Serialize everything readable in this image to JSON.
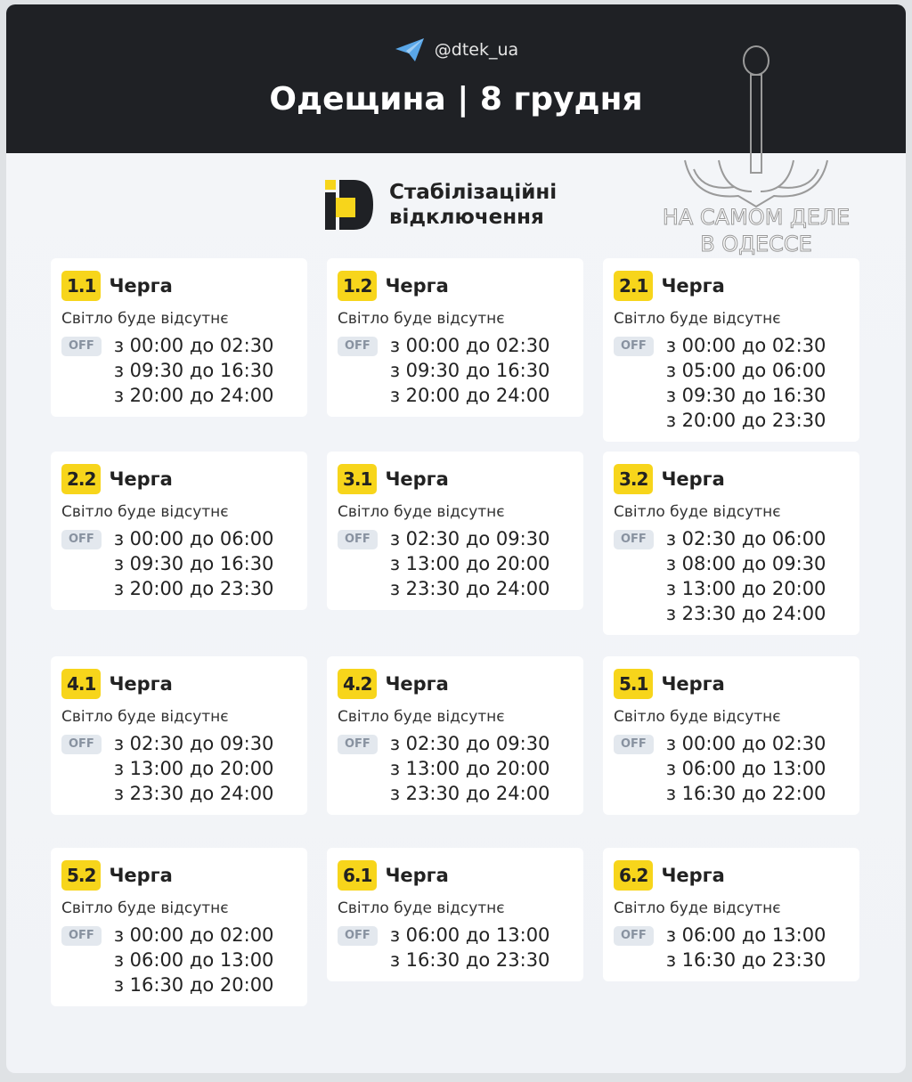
{
  "header": {
    "handle": "@dtek_ua",
    "title": "Одещина | 8 грудня",
    "icon": "telegram-icon"
  },
  "brand": {
    "line1": "Стабілізаційні",
    "line2": "відключення",
    "logo": "dtek-logo"
  },
  "watermark": {
    "line1": "НА САМОМ ДЕЛЕ",
    "line2": "В ОДЕССЕ"
  },
  "colors": {
    "header_bg": "#1f2125",
    "badge": "#f7d51b",
    "off_bg": "#e3e8ee"
  },
  "queues": [
    {
      "id": "1.1",
      "label": "Черга",
      "status": "Світло буде відсутнє",
      "off": "OFF",
      "times": [
        "з 00:00 до 02:30",
        "з 09:30 до 16:30",
        "з 20:00 до 24:00"
      ]
    },
    {
      "id": "1.2",
      "label": "Черга",
      "status": "Світло буде відсутнє",
      "off": "OFF",
      "times": [
        "з 00:00 до 02:30",
        "з 09:30 до 16:30",
        "з 20:00 до 24:00"
      ]
    },
    {
      "id": "2.1",
      "label": "Черга",
      "status": "Світло буде відсутнє",
      "off": "OFF",
      "times": [
        "з 00:00 до 02:30",
        "з 05:00 до 06:00",
        "з 09:30 до 16:30",
        "з 20:00 до 23:30"
      ]
    },
    {
      "id": "2.2",
      "label": "Черга",
      "status": "Світло буде відсутнє",
      "off": "OFF",
      "times": [
        "з 00:00 до 06:00",
        "з 09:30 до 16:30",
        "з 20:00 до 23:30"
      ]
    },
    {
      "id": "3.1",
      "label": "Черга",
      "status": "Світло буде відсутнє",
      "off": "OFF",
      "times": [
        "з 02:30 до 09:30",
        "з 13:00 до 20:00",
        "з 23:30 до 24:00"
      ]
    },
    {
      "id": "3.2",
      "label": "Черга",
      "status": "Світло буде відсутнє",
      "off": "OFF",
      "times": [
        "з 02:30 до 06:00",
        "з 08:00 до 09:30",
        "з 13:00 до 20:00",
        "з 23:30 до 24:00"
      ]
    },
    {
      "id": "4.1",
      "label": "Черга",
      "status": "Світло буде відсутнє",
      "off": "OFF",
      "times": [
        "з 02:30 до 09:30",
        "з 13:00 до 20:00",
        "з 23:30 до 24:00"
      ]
    },
    {
      "id": "4.2",
      "label": "Черга",
      "status": "Світло буде відсутнє",
      "off": "OFF",
      "times": [
        "з 02:30 до 09:30",
        "з 13:00 до 20:00",
        "з 23:30 до 24:00"
      ]
    },
    {
      "id": "5.1",
      "label": "Черга",
      "status": "Світло буде відсутнє",
      "off": "OFF",
      "times": [
        "з 00:00 до 02:30",
        "з 06:00 до 13:00",
        "з 16:30 до 22:00"
      ]
    },
    {
      "id": "5.2",
      "label": "Черга",
      "status": "Світло буде відсутнє",
      "off": "OFF",
      "times": [
        "з 00:00 до 02:00",
        "з 06:00 до 13:00",
        "з 16:30 до 20:00"
      ]
    },
    {
      "id": "6.1",
      "label": "Черга",
      "status": "Світло буде відсутнє",
      "off": "OFF",
      "times": [
        "з 06:00 до 13:00",
        "з 16:30 до 23:30"
      ]
    },
    {
      "id": "6.2",
      "label": "Черга",
      "status": "Світло буде відсутнє",
      "off": "OFF",
      "times": [
        "з 06:00 до 13:00",
        "з 16:30 до 23:30"
      ]
    }
  ]
}
